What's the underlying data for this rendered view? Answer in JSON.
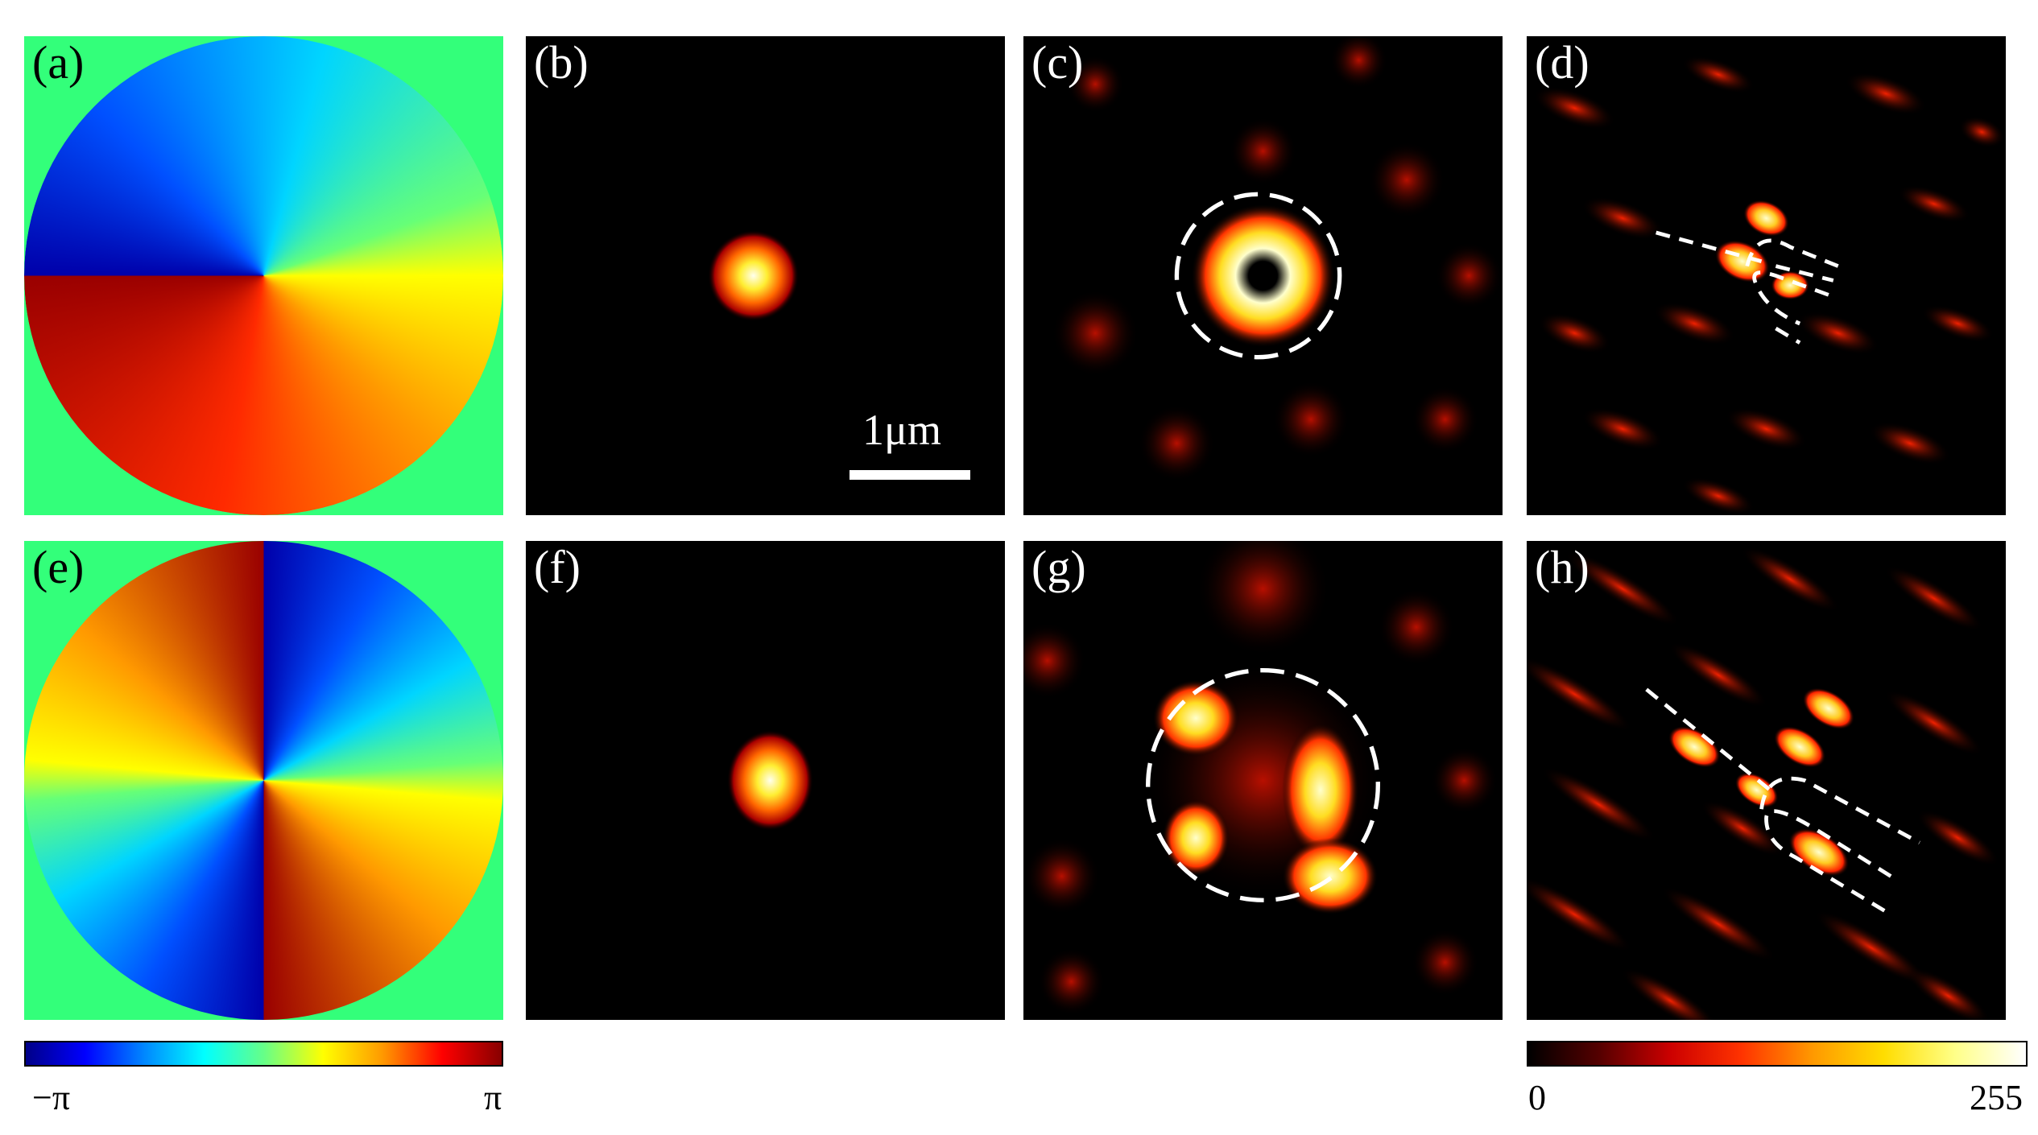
{
  "panels": {
    "a": {
      "label": "(a)",
      "kind": "phase",
      "charge": 1
    },
    "b": {
      "label": "(b)",
      "kind": "spot"
    },
    "c": {
      "label": "(c)",
      "kind": "vortex-ring"
    },
    "d": {
      "label": "(d)",
      "kind": "fork-fringes"
    },
    "e": {
      "label": "(e)",
      "kind": "phase",
      "charge": 2
    },
    "f": {
      "label": "(f)",
      "kind": "spot"
    },
    "g": {
      "label": "(g)",
      "kind": "vortex-ring"
    },
    "h": {
      "label": "(h)",
      "kind": "fork-fringes"
    }
  },
  "scale_bar": {
    "text": "1μm"
  },
  "phase_colorbar": {
    "min_label": "−π",
    "max_label": "π"
  },
  "intensity_colorbar": {
    "min_label": "0",
    "max_label": "255"
  },
  "colors": {
    "phase_background": "#33ff7a",
    "dark_background": "#000000",
    "annotation": "#ffffff"
  }
}
